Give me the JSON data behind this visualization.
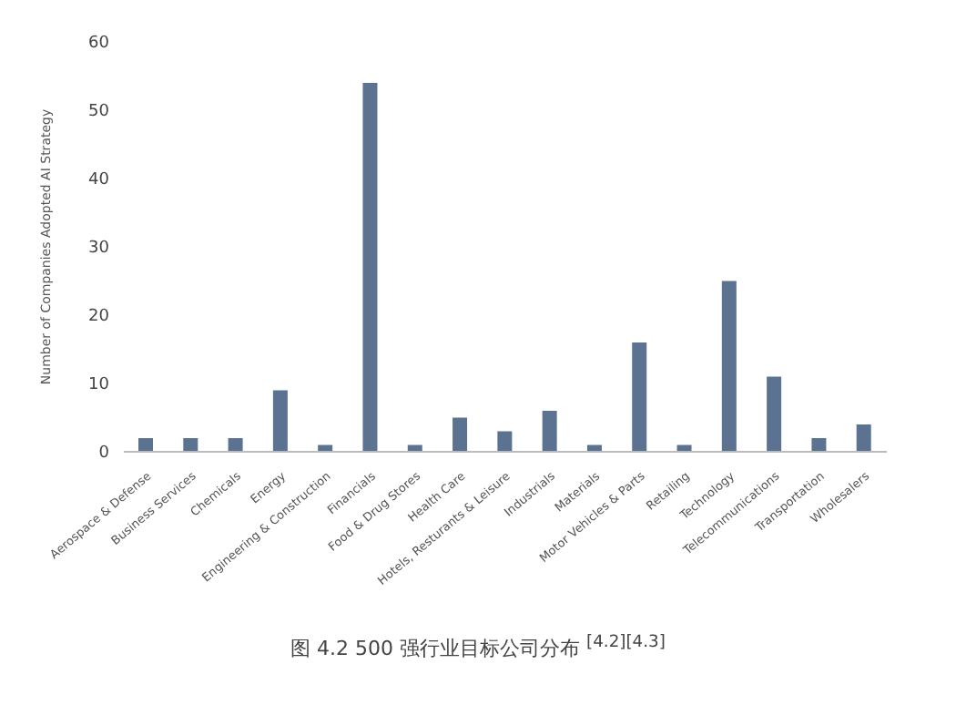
{
  "chart_data": {
    "type": "bar",
    "title": "图 4.2 500 强行业目标公司分布 $^{[4.2][4.3]}$",
    "ylabel": "Number of Companies Adopted AI Strategy",
    "categories": [
      "Aerospace & Defense",
      "Business Services",
      "Chemicals",
      "Energy",
      "Engineering & Construction",
      "Financials",
      "Food & Drug Stores",
      "Health Care",
      "Hotels, Resturants & Leisure",
      "Industrials",
      "Materials",
      "Motor Vehicles & Parts",
      "Retailing",
      "Technology",
      "Telecommunications",
      "Transportation",
      "Wholesalers"
    ],
    "values": [
      2,
      2,
      2,
      9,
      1,
      54,
      1,
      5,
      3,
      6,
      1,
      16,
      1,
      25,
      11,
      2,
      4
    ],
    "color": "#5b7290",
    "ylim": [
      0,
      60
    ],
    "yticks": [
      0,
      10,
      20,
      30,
      40,
      50,
      60
    ],
    "grid": false,
    "legend": false
  }
}
